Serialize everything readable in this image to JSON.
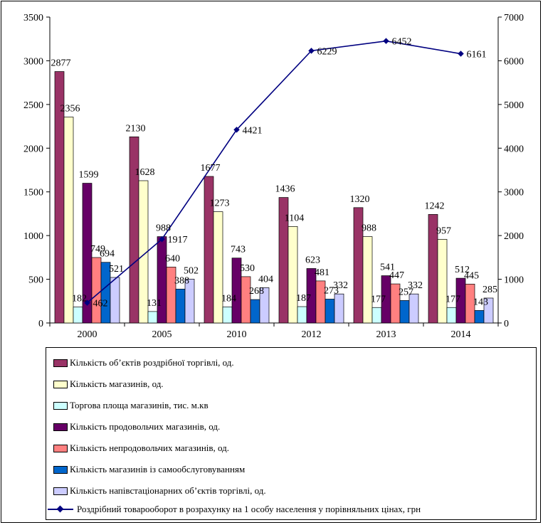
{
  "chart_data": {
    "type": "bar",
    "categories": [
      "2000",
      "2005",
      "2010",
      "2012",
      "2013",
      "2014"
    ],
    "ylim": [
      0,
      3500
    ],
    "yticks": [
      0,
      500,
      1000,
      1500,
      2000,
      2500,
      3000,
      3500
    ],
    "y2lim": [
      0,
      7000
    ],
    "y2ticks": [
      0,
      1000,
      2000,
      3000,
      4000,
      5000,
      6000,
      7000
    ],
    "legend_position": "bottom",
    "grid": false,
    "series": [
      {
        "name": "Кількість об’єктів роздрібної торгівлі, од.",
        "kind": "bar",
        "axis": "left",
        "color": "#993366",
        "values": [
          2877,
          2130,
          1677,
          1436,
          1320,
          1242
        ],
        "labels": [
          "2877",
          "2130",
          "1677",
          "1436",
          "1320",
          "1242"
        ]
      },
      {
        "name": "Кількість магазинів, од.",
        "kind": "bar",
        "axis": "left",
        "color": "#FFFFCC",
        "values": [
          2356,
          1628,
          1273,
          1104,
          988,
          957
        ],
        "labels": [
          "2356",
          "1628",
          "1273",
          "1104",
          "988",
          "957"
        ]
      },
      {
        "name": "Торгова площа магазинів, тис. м.кв",
        "kind": "bar",
        "axis": "left",
        "color": "#CCFFFF",
        "values": [
          182,
          131,
          184,
          187,
          177,
          177
        ],
        "labels": [
          "182",
          "131",
          "184",
          "187",
          "177",
          "177"
        ]
      },
      {
        "name": "Кількість продовольчих магазинів, од.",
        "kind": "bar",
        "axis": "left",
        "color": "#660066",
        "values": [
          1599,
          988,
          743,
          623,
          541,
          512
        ],
        "labels": [
          "1599",
          "988",
          "743",
          "623",
          "541",
          "512"
        ]
      },
      {
        "name": "Кількість непродовольчих магазинів, од.",
        "kind": "bar",
        "axis": "left",
        "color": "#FF8080",
        "values": [
          749,
          640,
          530,
          481,
          447,
          445
        ],
        "labels": [
          "749",
          "640",
          "530",
          "481",
          "447",
          "445"
        ]
      },
      {
        "name": "Кількість магазинів із самообслуговуванням",
        "kind": "bar",
        "axis": "left",
        "color": "#0066CC",
        "values": [
          694,
          388,
          268,
          273,
          257,
          143
        ],
        "labels": [
          "694",
          "388",
          "268",
          "273",
          "257",
          "143"
        ]
      },
      {
        "name": "Кількість напівстаціонарних об’єктів торгівлі, од.",
        "kind": "bar",
        "axis": "left",
        "color": "#CCCCFF",
        "values": [
          521,
          502,
          404,
          332,
          332,
          285
        ],
        "labels": [
          "521",
          "502",
          "404",
          "332",
          "332",
          "285"
        ]
      },
      {
        "name": "Роздрібний товарооборот в розрахунку на 1 особу населення у порівняльних цінах, грн",
        "kind": "line",
        "axis": "right",
        "color": "#000080",
        "values": [
          462,
          1917,
          4421,
          6229,
          6452,
          6161
        ],
        "labels": [
          "462",
          "1917",
          "4421",
          "6229",
          "6452",
          "6161"
        ]
      }
    ]
  }
}
